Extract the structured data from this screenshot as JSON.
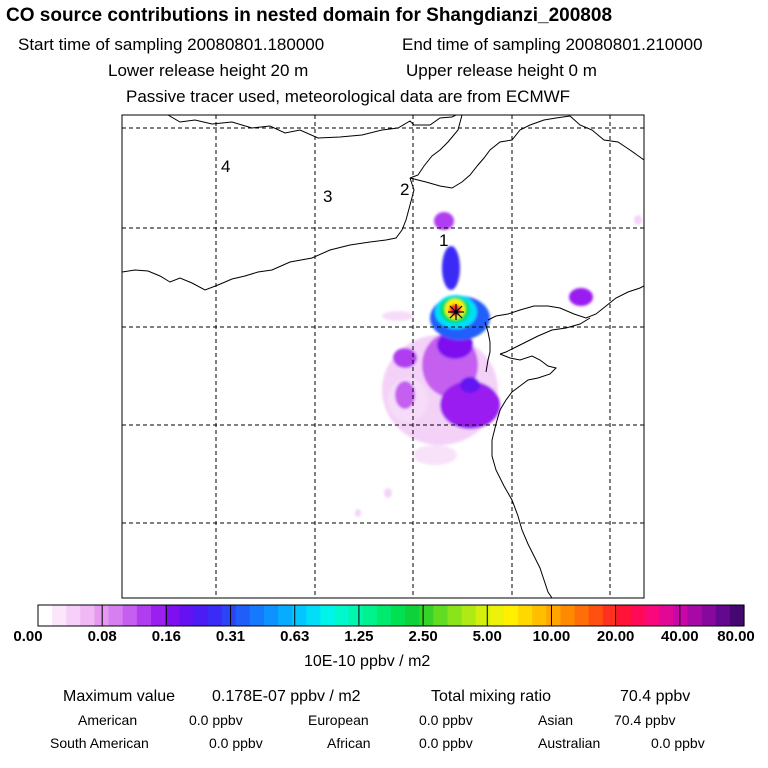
{
  "header": {
    "title": "CO  source contributions in nested domain for Shangdianzi_200808",
    "start_time": "Start time of sampling 20080801.180000",
    "end_time": "End time of sampling 20080801.210000",
    "lower_release": "Lower release height   20 m",
    "upper_release": "Upper release height    0 m",
    "note": "Passive tracer used, meteorological data are from ECMWF"
  },
  "map": {
    "trajectory_labels": [
      "4",
      "3",
      "2",
      "1"
    ],
    "release_marker": "receptor-star-icon"
  },
  "colorbar": {
    "tick_labels": [
      "0.00",
      "0.08",
      "0.16",
      "0.31",
      "0.63",
      "1.25",
      "2.50",
      "5.00",
      "10.00",
      "20.00",
      "40.00",
      "80.00"
    ],
    "unit": "10E-10 ppbv / m2",
    "colors": [
      "#ffffff",
      "#fbe6fb",
      "#f6d0f8",
      "#f0b8f4",
      "#e59af0",
      "#d67ff0",
      "#c45ff0",
      "#b13df0",
      "#9a1ff0",
      "#7e10f0",
      "#6412f2",
      "#4b1cf4",
      "#3a2cf6",
      "#2c44f8",
      "#205efa",
      "#1678fc",
      "#0e92fe",
      "#08acff",
      "#02c6ff",
      "#00def8",
      "#00f4ea",
      "#00f8cc",
      "#00f6ad",
      "#00f28f",
      "#00ea6e",
      "#00e052",
      "#0ed23a",
      "#36d428",
      "#62dc20",
      "#8ae41a",
      "#b0ea14",
      "#d2ef0e",
      "#eef20a",
      "#fff000",
      "#ffd800",
      "#ffbe00",
      "#ffa400",
      "#ff8a00",
      "#ff6e08",
      "#ff5010",
      "#ff3020",
      "#ff1438",
      "#ff0a58",
      "#f8087a",
      "#e20896",
      "#c808a6",
      "#a808a6",
      "#86089c",
      "#640890",
      "#440870"
    ]
  },
  "summary": {
    "max_label": "Maximum value",
    "max_value": "0.178E-07 ppbv / m2",
    "total_label": "Total mixing ratio",
    "total_value": "70.4 ppbv",
    "regions": [
      {
        "name": "American",
        "value": "0.0 ppbv"
      },
      {
        "name": "European",
        "value": "0.0 ppbv"
      },
      {
        "name": "Asian",
        "value": "70.4 ppbv"
      },
      {
        "name": "South American",
        "value": "0.0 ppbv"
      },
      {
        "name": "African",
        "value": "0.0 ppbv"
      },
      {
        "name": "Australian",
        "value": "0.0 ppbv"
      }
    ]
  }
}
